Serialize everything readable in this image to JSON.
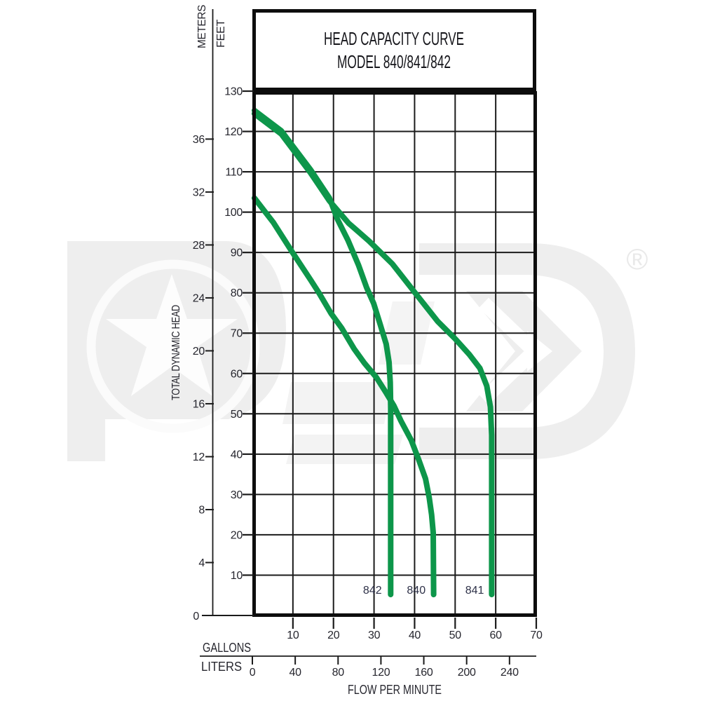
{
  "title": {
    "line1": "HEAD CAPACITY CURVE",
    "line2": "MODEL 840/841/842"
  },
  "axis_labels": {
    "left_unit_outer": "METERS",
    "left_unit_inner": "FEET",
    "left_title": "TOTAL DYNAMIC HEAD",
    "bottom_unit_top": "GALLONS",
    "bottom_unit_bottom": "LITERS",
    "bottom_title": "FLOW PER MINUTE",
    "origin": "0"
  },
  "registered_mark": "®",
  "colors": {
    "curve_green": "#0d964a",
    "grid_line": "#1b1b1b",
    "frame": "#0d0d0d",
    "text": "#26262e",
    "curve_label_text": "#2e3148",
    "watermark_gray": "#eeeeee"
  },
  "chart_data": {
    "type": "line",
    "title": "HEAD CAPACITY CURVE MODEL 840/841/842",
    "xlabel": "FLOW PER MINUTE",
    "ylabel": "TOTAL DYNAMIC HEAD",
    "x_axis": {
      "gallons_ticks": [
        10,
        20,
        30,
        40,
        50,
        60,
        70
      ],
      "liters_ticks": [
        0,
        40,
        80,
        120,
        160,
        200,
        240
      ],
      "range_gallons": [
        0,
        70
      ]
    },
    "y_axis": {
      "feet_ticks": [
        10,
        20,
        30,
        40,
        50,
        60,
        70,
        80,
        90,
        100,
        110,
        120,
        130
      ],
      "meters_ticks": [
        4,
        8,
        12,
        16,
        20,
        24,
        28,
        32,
        36
      ],
      "range_feet": [
        0,
        130
      ]
    },
    "grid": true,
    "series": [
      {
        "name": "842",
        "units": "gpm_vs_feet",
        "points": [
          [
            0.5,
            125.2
          ],
          [
            7.1,
            120.2
          ],
          [
            14.3,
            110.6
          ],
          [
            19.0,
            103.5
          ],
          [
            21.0,
            98.2
          ],
          [
            23.6,
            93.0
          ],
          [
            26.2,
            86.8
          ],
          [
            28.2,
            81.2
          ],
          [
            29.9,
            77.4
          ],
          [
            31.5,
            72.2
          ],
          [
            33.0,
            67.3
          ],
          [
            33.7,
            62.8
          ],
          [
            34.0,
            57.8
          ],
          [
            34.1,
            52.0
          ],
          [
            34.1,
            5.2
          ]
        ]
      },
      {
        "name": "840",
        "units": "gpm_vs_feet",
        "points": [
          [
            0.5,
            103.5
          ],
          [
            5.2,
            97.4
          ],
          [
            9.9,
            90.0
          ],
          [
            14.3,
            83.3
          ],
          [
            16.4,
            80.0
          ],
          [
            19.4,
            74.9
          ],
          [
            22.0,
            71.3
          ],
          [
            25.1,
            66.1
          ],
          [
            27.6,
            62.6
          ],
          [
            30.6,
            59.0
          ],
          [
            32.8,
            55.5
          ],
          [
            34.9,
            52.0
          ],
          [
            36.6,
            48.3
          ],
          [
            39.2,
            43.4
          ],
          [
            41.1,
            38.4
          ],
          [
            42.7,
            33.9
          ],
          [
            43.6,
            29.2
          ],
          [
            44.2,
            25.0
          ],
          [
            44.6,
            20.5
          ],
          [
            44.7,
            5.2
          ]
        ]
      },
      {
        "name": "841",
        "units": "gpm_vs_feet",
        "points": [
          [
            0.5,
            124.4
          ],
          [
            7.1,
            119.4
          ],
          [
            14.3,
            109.8
          ],
          [
            19.0,
            102.8
          ],
          [
            23.7,
            97.3
          ],
          [
            28.8,
            92.8
          ],
          [
            34.5,
            87.2
          ],
          [
            40.2,
            79.9
          ],
          [
            45.7,
            72.9
          ],
          [
            50.0,
            68.6
          ],
          [
            53.5,
            64.7
          ],
          [
            56.1,
            61.3
          ],
          [
            57.8,
            56.9
          ],
          [
            58.7,
            51.7
          ],
          [
            59.0,
            44.7
          ],
          [
            59.0,
            5.2
          ]
        ]
      }
    ],
    "curve_labels": [
      {
        "text": "842",
        "gpm": 29.6
      },
      {
        "text": "840",
        "gpm": 40.4
      },
      {
        "text": "841",
        "gpm": 54.8
      }
    ]
  }
}
